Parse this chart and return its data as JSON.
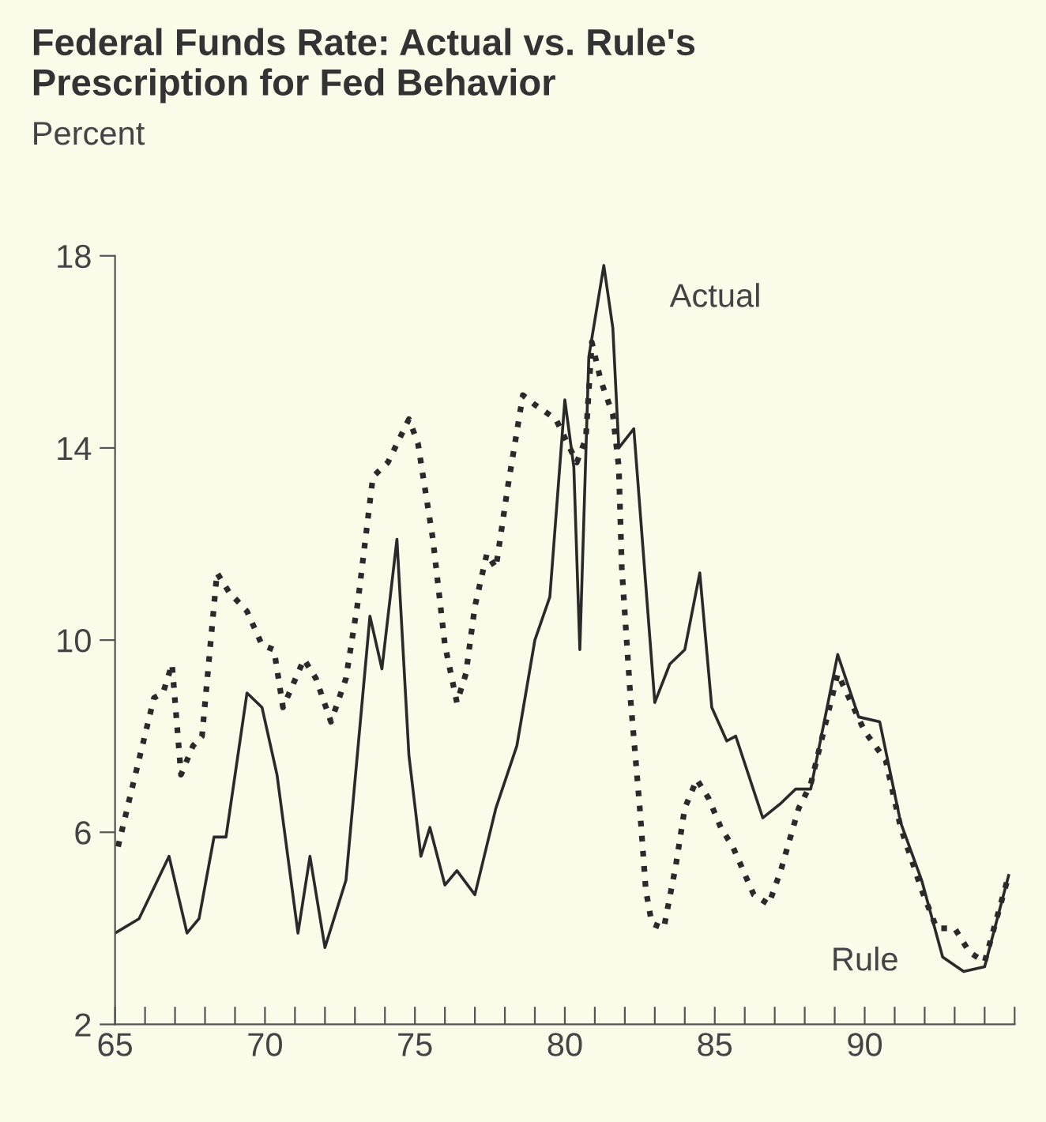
{
  "chart_data": {
    "type": "line",
    "title": "Federal Funds Rate: Actual vs. Rule's\nPrescription for Fed Behavior",
    "ylabel": "Percent",
    "xlim": [
      65,
      95
    ],
    "ylim": [
      2,
      18
    ],
    "yticks": [
      2,
      6,
      10,
      14,
      18
    ],
    "xticks": [
      65,
      {
        "value": 66,
        "label": null
      },
      {
        "value": 67,
        "label": null
      },
      {
        "value": 68,
        "label": null
      },
      {
        "value": 69,
        "label": null
      },
      70,
      {
        "value": 71,
        "label": null
      },
      {
        "value": 72,
        "label": null
      },
      {
        "value": 73,
        "label": null
      },
      {
        "value": 74,
        "label": null
      },
      75,
      {
        "value": 76,
        "label": null
      },
      {
        "value": 77,
        "label": null
      },
      {
        "value": 78,
        "label": null
      },
      {
        "value": 79,
        "label": null
      },
      80,
      {
        "value": 81,
        "label": null
      },
      {
        "value": 82,
        "label": null
      },
      {
        "value": 83,
        "label": null
      },
      {
        "value": 84,
        "label": null
      },
      85,
      {
        "value": 86,
        "label": null
      },
      {
        "value": 87,
        "label": null
      },
      {
        "value": 88,
        "label": null
      },
      {
        "value": 89,
        "label": null
      },
      90,
      {
        "value": 91,
        "label": null
      },
      {
        "value": 92,
        "label": null
      },
      {
        "value": 93,
        "label": null
      },
      {
        "value": 94,
        "label": null
      },
      {
        "value": 95,
        "label": null
      }
    ],
    "grid": false,
    "legend": false,
    "marker": "none",
    "series": [
      {
        "name": "Actual",
        "color": "#2a2a2a",
        "line_style": "solid",
        "x": [
          65.0,
          65.8,
          66.8,
          67.4,
          67.8,
          68.3,
          68.7,
          69.4,
          69.9,
          70.4,
          71.1,
          71.5,
          72.0,
          72.7,
          73.5,
          73.9,
          74.4,
          74.8,
          75.2,
          75.5,
          76.0,
          76.4,
          77.0,
          77.7,
          78.4,
          79.0,
          79.5,
          80.0,
          80.3,
          80.5,
          80.8,
          81.3,
          81.6,
          81.8,
          82.3,
          83.0,
          83.5,
          84.0,
          84.5,
          84.9,
          85.4,
          85.7,
          86.6,
          87.2,
          87.7,
          88.2,
          89.1,
          89.8,
          90.5,
          91.2,
          91.9,
          92.6,
          93.3,
          94.0,
          94.8
        ],
        "values": [
          3.9,
          4.2,
          5.5,
          3.9,
          4.2,
          5.9,
          5.9,
          8.9,
          8.6,
          7.2,
          3.9,
          5.5,
          3.6,
          5.0,
          10.5,
          9.4,
          12.1,
          7.6,
          5.5,
          6.1,
          4.9,
          5.2,
          4.7,
          6.5,
          7.8,
          10.0,
          10.9,
          15.0,
          13.6,
          9.8,
          15.9,
          17.8,
          16.5,
          14.0,
          14.4,
          8.7,
          9.5,
          9.8,
          11.4,
          8.6,
          7.9,
          8.0,
          6.3,
          6.6,
          6.9,
          6.9,
          9.7,
          8.4,
          8.3,
          6.2,
          5.0,
          3.4,
          3.1,
          3.2,
          5.1
        ]
      },
      {
        "name": "Rule",
        "color": "#2a2a2a",
        "line_style": "dotted",
        "x": [
          65.1,
          65.6,
          66.3,
          66.6,
          66.9,
          67.2,
          67.6,
          67.9,
          68.4,
          68.8,
          69.4,
          69.9,
          70.3,
          70.6,
          71.3,
          71.7,
          72.2,
          72.7,
          73.1,
          73.6,
          74.1,
          74.8,
          75.1,
          75.6,
          76.0,
          76.4,
          76.7,
          77.0,
          77.4,
          77.7,
          78.1,
          78.6,
          79.0,
          79.7,
          80.4,
          80.7,
          80.9,
          81.2,
          81.6,
          81.8,
          81.9,
          82.2,
          82.5,
          82.7,
          82.9,
          83.3,
          83.7,
          84.0,
          84.4,
          84.8,
          85.2,
          85.6,
          86.3,
          86.8,
          87.2,
          87.8,
          88.2,
          89.1,
          90.0,
          90.7,
          91.2,
          91.9,
          92.4,
          93.0,
          93.5,
          94.0,
          94.8
        ],
        "values": [
          5.7,
          7.0,
          8.8,
          8.9,
          9.5,
          7.2,
          7.8,
          8.0,
          11.4,
          11.0,
          10.6,
          9.9,
          9.8,
          8.6,
          9.6,
          9.2,
          8.3,
          9.2,
          10.8,
          13.4,
          13.7,
          14.6,
          14.1,
          12.1,
          9.9,
          8.7,
          9.3,
          10.7,
          11.8,
          11.5,
          13.2,
          15.1,
          14.9,
          14.6,
          13.7,
          14.2,
          16.2,
          15.4,
          14.7,
          13.6,
          11.5,
          8.7,
          6.5,
          4.8,
          4.1,
          4.0,
          5.3,
          6.5,
          7.1,
          6.7,
          6.1,
          5.7,
          4.7,
          4.5,
          5.2,
          6.5,
          7.0,
          9.3,
          8.1,
          7.5,
          6.1,
          4.8,
          4.0,
          4.0,
          3.5,
          3.3,
          5.1
        ]
      }
    ]
  }
}
